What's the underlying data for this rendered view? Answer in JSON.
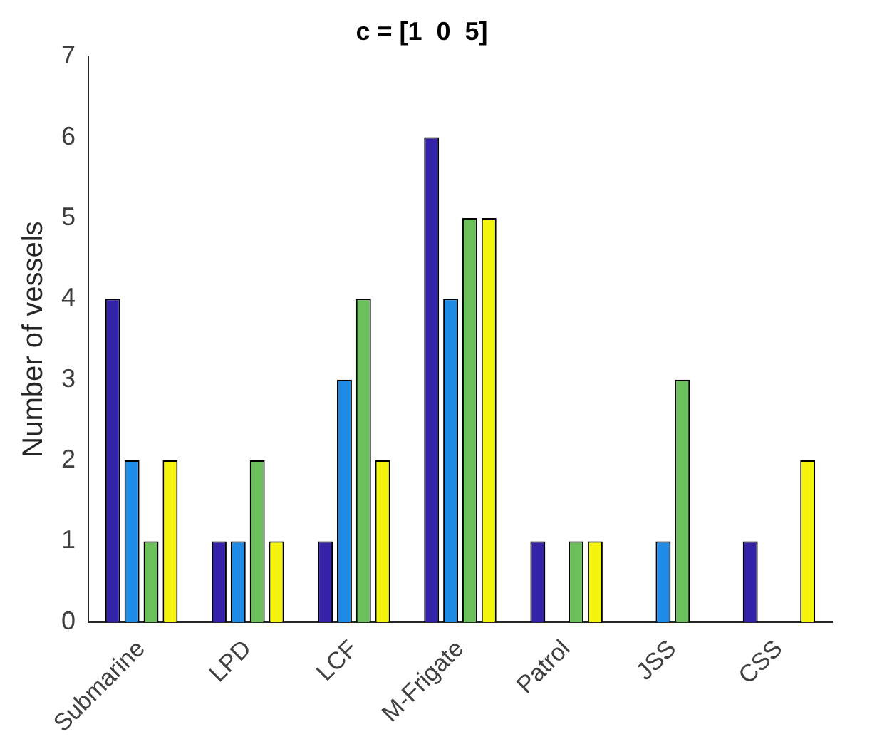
{
  "chart_data": {
    "type": "bar",
    "title": "c = [1  0  5]",
    "ylabel": "Number of vessels",
    "categories": [
      "Submarine",
      "LPD",
      "LCF",
      "M-Frigate",
      "Patrol",
      "JSS",
      "CSS"
    ],
    "series": [
      {
        "color": "#3422a8",
        "values": [
          4,
          1,
          1,
          6,
          1,
          0,
          1
        ]
      },
      {
        "color": "#1e8ce6",
        "values": [
          2,
          1,
          3,
          4,
          0,
          1,
          0
        ]
      },
      {
        "color": "#6cc05c",
        "values": [
          1,
          2,
          4,
          5,
          1,
          3,
          0
        ]
      },
      {
        "color": "#f4f40c",
        "values": [
          2,
          1,
          2,
          5,
          1,
          0,
          2
        ]
      }
    ],
    "ylim": [
      0,
      7
    ],
    "yticks": [
      0,
      1,
      2,
      3,
      4,
      5,
      6,
      7
    ],
    "grid": false,
    "legend": false
  }
}
